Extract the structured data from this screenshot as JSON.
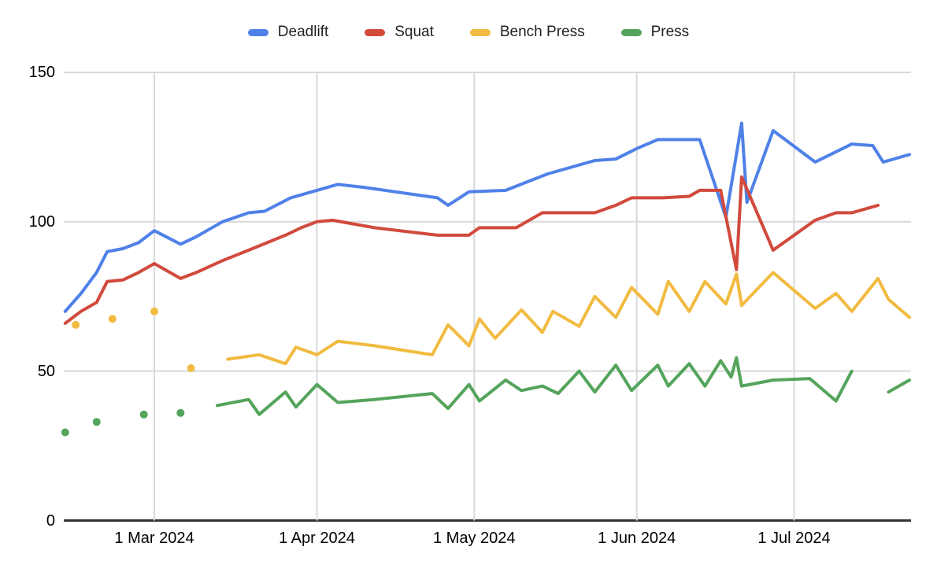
{
  "chart_data": {
    "type": "line",
    "title": "",
    "xlabel": "",
    "ylabel": "",
    "grid": true,
    "legend_position": "top",
    "x_axis": {
      "type": "date",
      "tick_labels": [
        "1 Mar 2024",
        "1 Apr 2024",
        "1 May 2024",
        "1 Jun 2024",
        "1 Jul 2024"
      ],
      "tick_dates": [
        "2024-03-01",
        "2024-04-01",
        "2024-05-01",
        "2024-06-01",
        "2024-07-01"
      ],
      "visible_date_range": [
        "2024-02-12",
        "2024-07-24"
      ]
    },
    "y_axis": {
      "tick_labels": [
        "0",
        "50",
        "100",
        "150"
      ],
      "tick_values": [
        0,
        50,
        100,
        150
      ],
      "range": [
        0,
        150
      ]
    },
    "colors": {
      "deadlift": "#4f81e8",
      "squat": "#d14a3c",
      "bench_press": "#f1bb41",
      "press": "#54a45c",
      "gridline": "#d9d9d9",
      "baseline": "#333333"
    },
    "series": [
      {
        "name": "Deadlift",
        "color": "#4f81e8",
        "points": [
          [
            "2024-02-13",
            70
          ],
          [
            "2024-02-16",
            76
          ],
          [
            "2024-02-19",
            83
          ],
          [
            "2024-02-21",
            90
          ],
          [
            "2024-02-24",
            91
          ],
          [
            "2024-02-27",
            93
          ],
          [
            "2024-03-01",
            97
          ],
          [
            "2024-03-06",
            92.5
          ],
          [
            "2024-03-09",
            95
          ],
          [
            "2024-03-14",
            100
          ],
          [
            "2024-03-19",
            103
          ],
          [
            "2024-03-22",
            103.5
          ],
          [
            "2024-03-27",
            108
          ],
          [
            "2024-04-01",
            110.5
          ],
          [
            "2024-04-05",
            112.5
          ],
          [
            "2024-04-10",
            111.5
          ],
          [
            "2024-04-16",
            110
          ],
          [
            "2024-04-24",
            108
          ],
          [
            "2024-04-26",
            105.5
          ],
          [
            "2024-04-30",
            110
          ],
          [
            "2024-05-07",
            110.5
          ],
          [
            "2024-05-15",
            116
          ],
          [
            "2024-05-24",
            120.5
          ],
          [
            "2024-05-28",
            121
          ],
          [
            "2024-06-01",
            124.5
          ],
          [
            "2024-06-05",
            127.5
          ],
          [
            "2024-06-13",
            127.5
          ],
          [
            "2024-06-18",
            101.5
          ],
          [
            "2024-06-21",
            133
          ],
          [
            "2024-06-22",
            106.5
          ],
          [
            "2024-06-27",
            130.5
          ],
          [
            "2024-07-05",
            120
          ],
          [
            "2024-07-12",
            126
          ],
          [
            "2024-07-16",
            125.5
          ],
          [
            "2024-07-18",
            120
          ],
          [
            "2024-07-23",
            122.5
          ]
        ]
      },
      {
        "name": "Squat",
        "color": "#d14a3c",
        "points": [
          [
            "2024-02-13",
            66
          ],
          [
            "2024-02-16",
            70
          ],
          [
            "2024-02-19",
            73
          ],
          [
            "2024-02-21",
            80
          ],
          [
            "2024-02-24",
            80.5
          ],
          [
            "2024-02-27",
            83
          ],
          [
            "2024-03-01",
            86
          ],
          [
            "2024-03-06",
            81
          ],
          [
            "2024-03-09",
            83
          ],
          [
            "2024-03-14",
            87
          ],
          [
            "2024-03-19",
            90.5
          ],
          [
            "2024-03-26",
            95.5
          ],
          [
            "2024-03-29",
            98
          ],
          [
            "2024-04-01",
            100
          ],
          [
            "2024-04-04",
            100.5
          ],
          [
            "2024-04-12",
            98
          ],
          [
            "2024-04-24",
            95.5
          ],
          [
            "2024-04-30",
            95.5
          ],
          [
            "2024-05-02",
            98
          ],
          [
            "2024-05-09",
            98
          ],
          [
            "2024-05-14",
            103
          ],
          [
            "2024-05-24",
            103
          ],
          [
            "2024-05-28",
            105.5
          ],
          [
            "2024-05-31",
            108
          ],
          [
            "2024-06-06",
            108
          ],
          [
            "2024-06-11",
            108.5
          ],
          [
            "2024-06-13",
            110.5
          ],
          [
            "2024-06-17",
            110.5
          ],
          [
            "2024-06-20",
            84
          ],
          [
            "2024-06-21",
            115
          ],
          [
            "2024-06-27",
            90.5
          ],
          [
            "2024-07-05",
            100.5
          ],
          [
            "2024-07-09",
            103
          ],
          [
            "2024-07-12",
            103
          ],
          [
            "2024-07-17",
            105.5
          ]
        ]
      },
      {
        "name": "Bench Press",
        "color": "#f1bb41",
        "points": [
          [
            "2024-02-15",
            65.5
          ],
          [
            "2024-02-19",
            null
          ],
          [
            "2024-02-22",
            67.5
          ],
          [
            "2024-02-26",
            null
          ],
          [
            "2024-03-01",
            70
          ],
          [
            "2024-03-05",
            null
          ],
          [
            "2024-03-08",
            51
          ],
          [
            "2024-03-12",
            null
          ],
          [
            "2024-03-15",
            54
          ],
          [
            "2024-03-21",
            55.5
          ],
          [
            "2024-03-26",
            52.5
          ],
          [
            "2024-03-28",
            58
          ],
          [
            "2024-04-01",
            55.5
          ],
          [
            "2024-04-05",
            60
          ],
          [
            "2024-04-12",
            58.5
          ],
          [
            "2024-04-23",
            55.5
          ],
          [
            "2024-04-26",
            65.5
          ],
          [
            "2024-04-28",
            62
          ],
          [
            "2024-04-30",
            58.5
          ],
          [
            "2024-05-02",
            67.5
          ],
          [
            "2024-05-05",
            61
          ],
          [
            "2024-05-10",
            70.5
          ],
          [
            "2024-05-14",
            63
          ],
          [
            "2024-05-16",
            70
          ],
          [
            "2024-05-21",
            65
          ],
          [
            "2024-05-24",
            75
          ],
          [
            "2024-05-28",
            68
          ],
          [
            "2024-05-31",
            78
          ],
          [
            "2024-06-05",
            69
          ],
          [
            "2024-06-07",
            80
          ],
          [
            "2024-06-11",
            70
          ],
          [
            "2024-06-14",
            80
          ],
          [
            "2024-06-18",
            72.5
          ],
          [
            "2024-06-20",
            82.5
          ],
          [
            "2024-06-21",
            72
          ],
          [
            "2024-06-27",
            83
          ],
          [
            "2024-07-05",
            71
          ],
          [
            "2024-07-09",
            76
          ],
          [
            "2024-07-12",
            70
          ],
          [
            "2024-07-17",
            81
          ],
          [
            "2024-07-19",
            74
          ],
          [
            "2024-07-23",
            68
          ]
        ]
      },
      {
        "name": "Press",
        "color": "#54a45c",
        "points": [
          [
            "2024-02-13",
            29.5
          ],
          [
            "2024-02-16",
            null
          ],
          [
            "2024-02-19",
            33
          ],
          [
            "2024-02-24",
            null
          ],
          [
            "2024-02-28",
            35.5
          ],
          [
            "2024-03-02",
            null
          ],
          [
            "2024-03-06",
            36
          ],
          [
            "2024-03-10",
            null
          ],
          [
            "2024-03-13",
            38.5
          ],
          [
            "2024-03-19",
            40.5
          ],
          [
            "2024-03-21",
            35.5
          ],
          [
            "2024-03-26",
            43
          ],
          [
            "2024-03-28",
            38
          ],
          [
            "2024-04-01",
            45.5
          ],
          [
            "2024-04-05",
            39.5
          ],
          [
            "2024-04-12",
            40.5
          ],
          [
            "2024-04-23",
            42.5
          ],
          [
            "2024-04-26",
            37.5
          ],
          [
            "2024-04-30",
            45.5
          ],
          [
            "2024-05-02",
            40
          ],
          [
            "2024-05-07",
            47
          ],
          [
            "2024-05-10",
            43.5
          ],
          [
            "2024-05-14",
            45
          ],
          [
            "2024-05-17",
            42.5
          ],
          [
            "2024-05-21",
            50
          ],
          [
            "2024-05-24",
            43
          ],
          [
            "2024-05-28",
            52
          ],
          [
            "2024-05-31",
            43.5
          ],
          [
            "2024-06-05",
            52
          ],
          [
            "2024-06-07",
            45
          ],
          [
            "2024-06-11",
            52.5
          ],
          [
            "2024-06-14",
            45
          ],
          [
            "2024-06-17",
            53.5
          ],
          [
            "2024-06-19",
            48
          ],
          [
            "2024-06-20",
            54.5
          ],
          [
            "2024-06-21",
            45
          ],
          [
            "2024-06-27",
            47
          ],
          [
            "2024-07-04",
            47.5
          ],
          [
            "2024-07-09",
            40
          ],
          [
            "2024-07-12",
            50
          ],
          [
            "2024-07-16",
            null
          ],
          [
            "2024-07-19",
            43
          ],
          [
            "2024-07-23",
            47
          ]
        ]
      }
    ]
  }
}
